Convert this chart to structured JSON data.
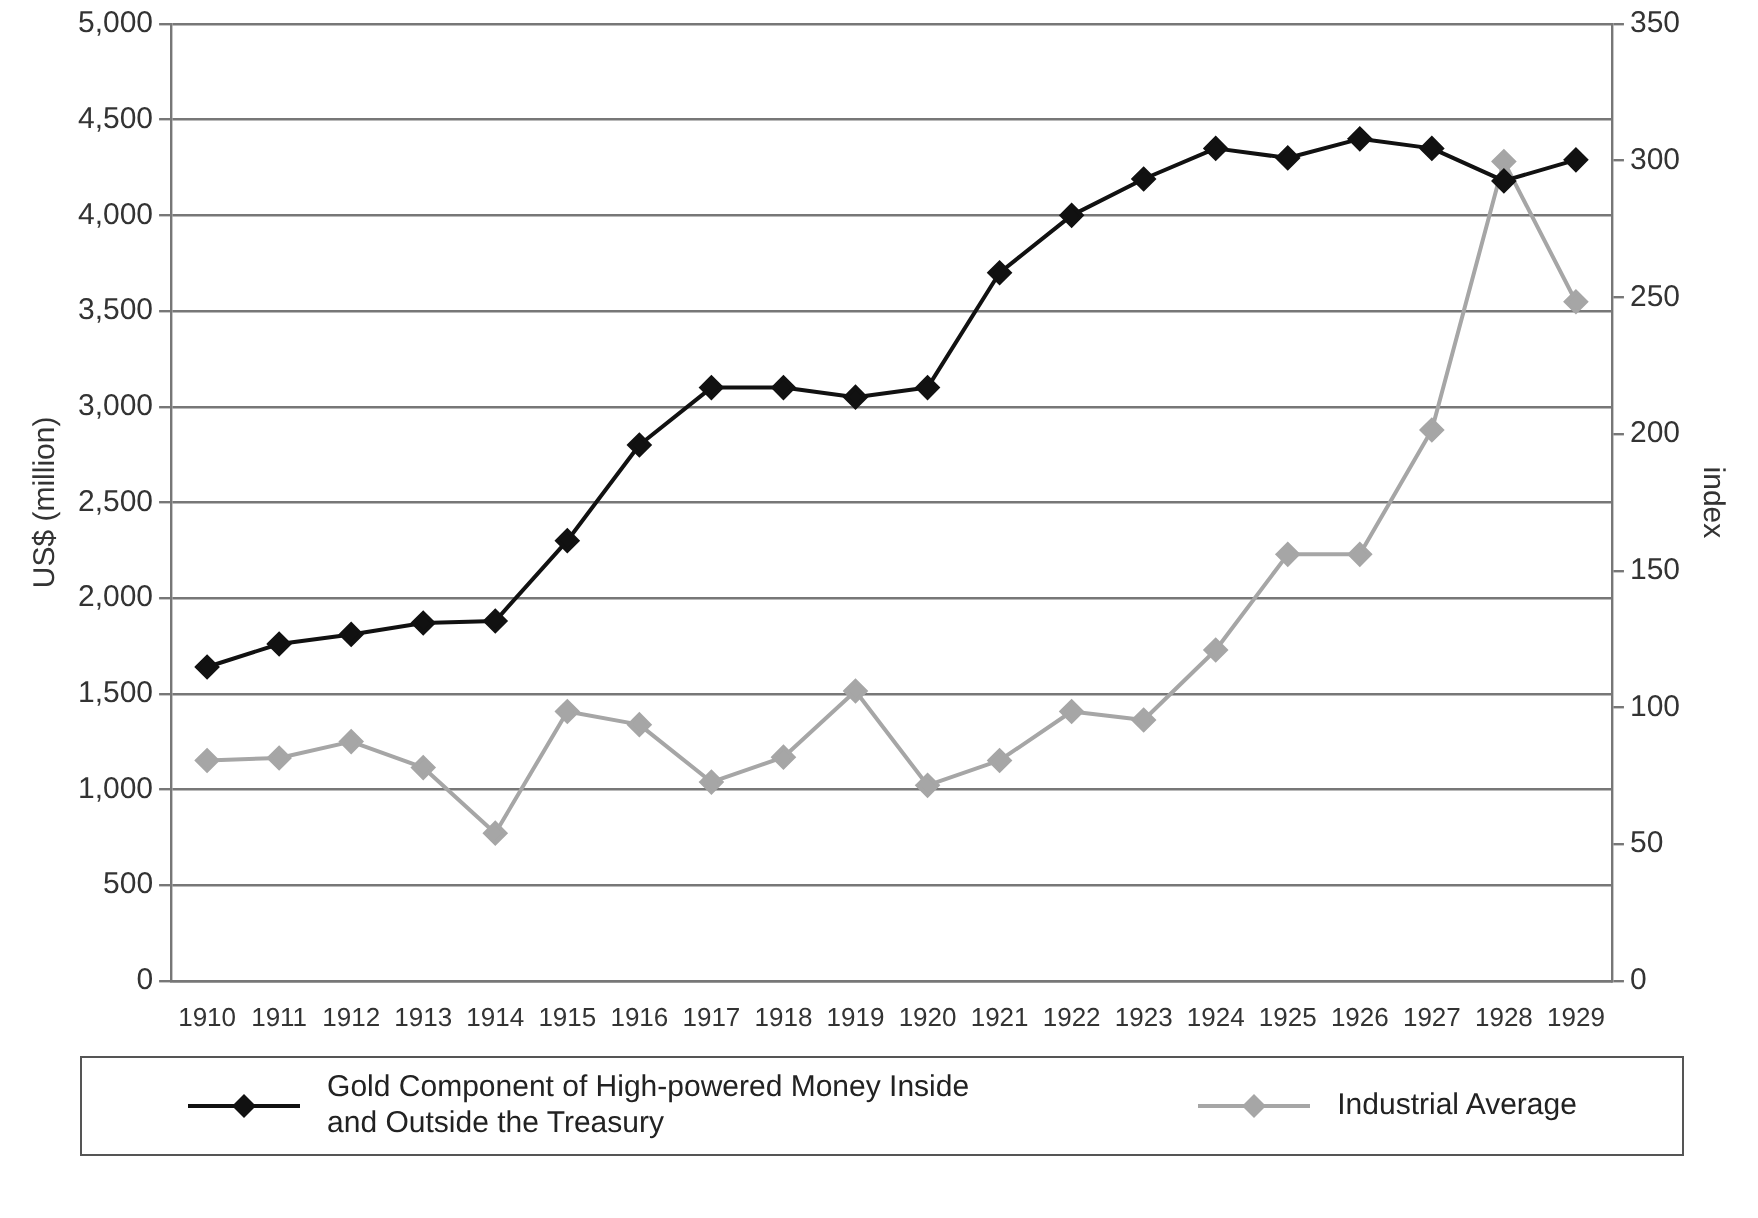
{
  "chart_data": {
    "type": "line",
    "categories": [
      "1910",
      "1911",
      "1912",
      "1913",
      "1914",
      "1915",
      "1916",
      "1917",
      "1918",
      "1919",
      "1920",
      "1921",
      "1922",
      "1923",
      "1924",
      "1925",
      "1926",
      "1927",
      "1928",
      "1929"
    ],
    "series": [
      {
        "name": "Gold Component of High-powered Money Inside and Outside the Treasury",
        "color": "#111111",
        "values": [
          1640,
          1760,
          1810,
          1870,
          1880,
          2300,
          2800,
          3100,
          3100,
          3050,
          3100,
          3700,
          4000,
          4190,
          4350,
          4300,
          4400,
          4350,
          4180,
          4290
        ]
      },
      {
        "name": "Industrial Average",
        "color": "#a6a6a6",
        "axis": "y2",
        "values": [
          80.6,
          81.5,
          87.5,
          78,
          54,
          98.5,
          93.7,
          72.7,
          81.8,
          106,
          71.5,
          80.6,
          98.5,
          95.4,
          121,
          156,
          156,
          201.5,
          299.7,
          248.4
        ]
      }
    ],
    "ylabel": "US$ (million)",
    "y2label": "index",
    "ylim": [
      0,
      5000
    ],
    "yticks": [
      {
        "value": 0,
        "label": "0"
      },
      {
        "value": 500,
        "label": "500"
      },
      {
        "value": 1000,
        "label": "1,000"
      },
      {
        "value": 1500,
        "label": "1,500"
      },
      {
        "value": 2000,
        "label": "2,000"
      },
      {
        "value": 2500,
        "label": "2,500"
      },
      {
        "value": 3000,
        "label": "3,000"
      },
      {
        "value": 3500,
        "label": "3,500"
      },
      {
        "value": 4000,
        "label": "4,000"
      },
      {
        "value": 4500,
        "label": "4,500"
      },
      {
        "value": 5000,
        "label": "5,000"
      }
    ],
    "y2lim": [
      0,
      350
    ],
    "y2ticks": [
      0,
      50,
      100,
      150,
      200,
      250,
      300,
      350
    ],
    "grid": "y",
    "legend": "bottom",
    "marker": "diamond",
    "line_style": "solid"
  }
}
